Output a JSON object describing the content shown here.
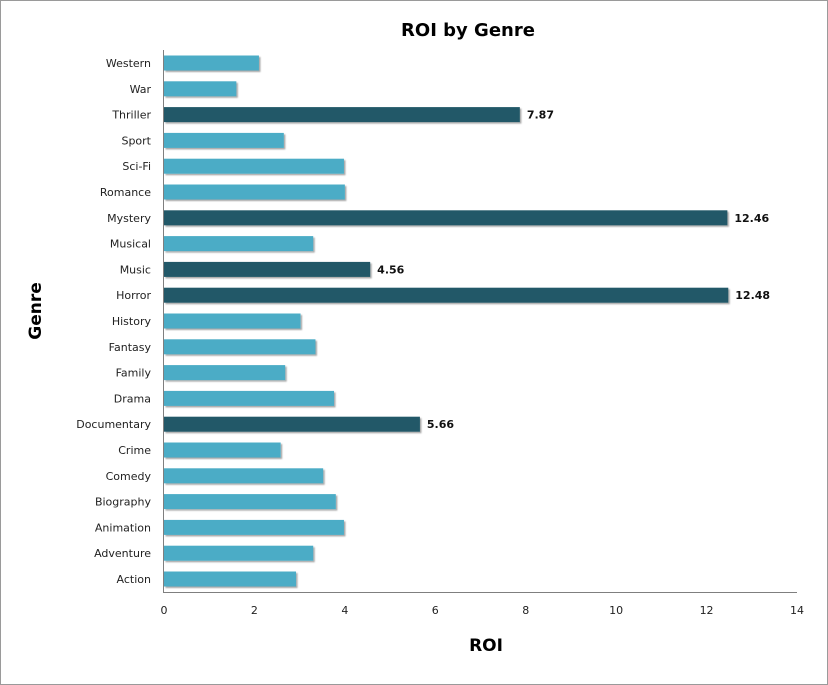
{
  "chart_data": {
    "type": "bar",
    "orientation": "horizontal",
    "title": "ROI by Genre",
    "xlabel": "ROI",
    "ylabel": "Genre",
    "xlim": [
      0,
      14
    ],
    "xticks": [
      "0",
      "2",
      "4",
      "6",
      "8",
      "10",
      "12",
      "14"
    ],
    "categories": [
      "Western",
      "War",
      "Thriller",
      "Sport",
      "Sci-Fi",
      "Romance",
      "Mystery",
      "Musical",
      "Music",
      "Horror",
      "History",
      "Fantasy",
      "Family",
      "Drama",
      "Documentary",
      "Crime",
      "Comedy",
      "Biography",
      "Animation",
      "Adventure",
      "Action"
    ],
    "values": [
      2.1,
      1.6,
      7.87,
      2.65,
      3.98,
      4.0,
      12.46,
      3.3,
      4.56,
      12.48,
      3.02,
      3.35,
      2.68,
      3.76,
      5.66,
      2.58,
      3.52,
      3.8,
      3.98,
      3.3,
      2.92
    ],
    "highlighted": [
      "Thriller",
      "Mystery",
      "Music",
      "Horror",
      "Documentary"
    ],
    "data_labels": {
      "Thriller": "7.87",
      "Mystery": "12.46",
      "Music": "4.56",
      "Horror": "12.48",
      "Documentary": "5.66"
    },
    "colors": {
      "normal": "#4bacc6",
      "highlight": "#215968"
    },
    "grid": false,
    "legend": "none"
  }
}
